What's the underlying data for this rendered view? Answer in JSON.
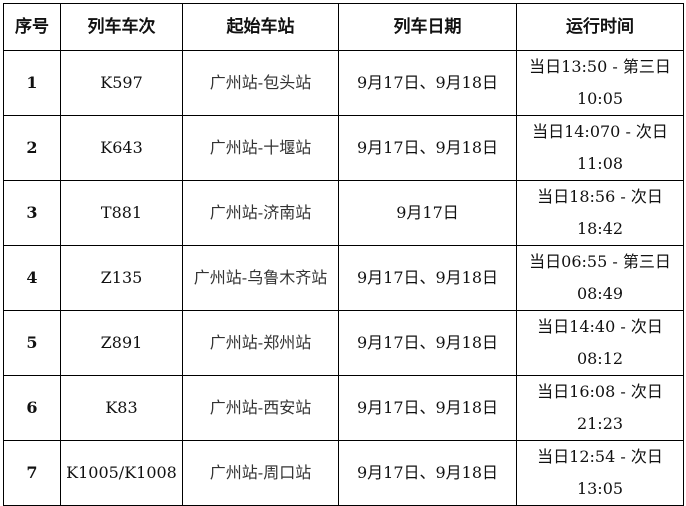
{
  "headers": [
    "序号",
    "列车车次",
    "起始车站",
    "列车日期",
    "运行时间"
  ],
  "rows": [
    {
      "no": "1",
      "train": "K597",
      "route": "广州站-包头站",
      "dates": "9月17日、9月18日",
      "time": "当日13:50 - 第三日10:05"
    },
    {
      "no": "2",
      "train": "K643",
      "route": "广州站-十堰站",
      "dates": "9月17日、9月18日",
      "time": "当日14:070 - 次日11:08"
    },
    {
      "no": "3",
      "train": "T881",
      "route": "广州站-济南站",
      "dates": "9月17日",
      "time": "当日18:56 - 次日18:42"
    },
    {
      "no": "4",
      "train": "Z135",
      "route": "广州站-乌鲁木齐站",
      "dates": "9月17日、9月18日",
      "time": "当日06:55 - 第三日08:49"
    },
    {
      "no": "5",
      "train": "Z891",
      "route": "广州站-郑州站",
      "dates": "9月17日、9月18日",
      "time": "当日14:40 - 次日08:12"
    },
    {
      "no": "6",
      "train": "K83",
      "route": "广州站-西安站",
      "dates": "9月17日、9月18日",
      "time": "当日16:08 - 次日21:23"
    },
    {
      "no": "7",
      "train": "K1005/K1008",
      "route": "广州站-周口站",
      "dates": "9月17日、9月18日",
      "time": "当日12:54 - 次日13:05"
    }
  ]
}
